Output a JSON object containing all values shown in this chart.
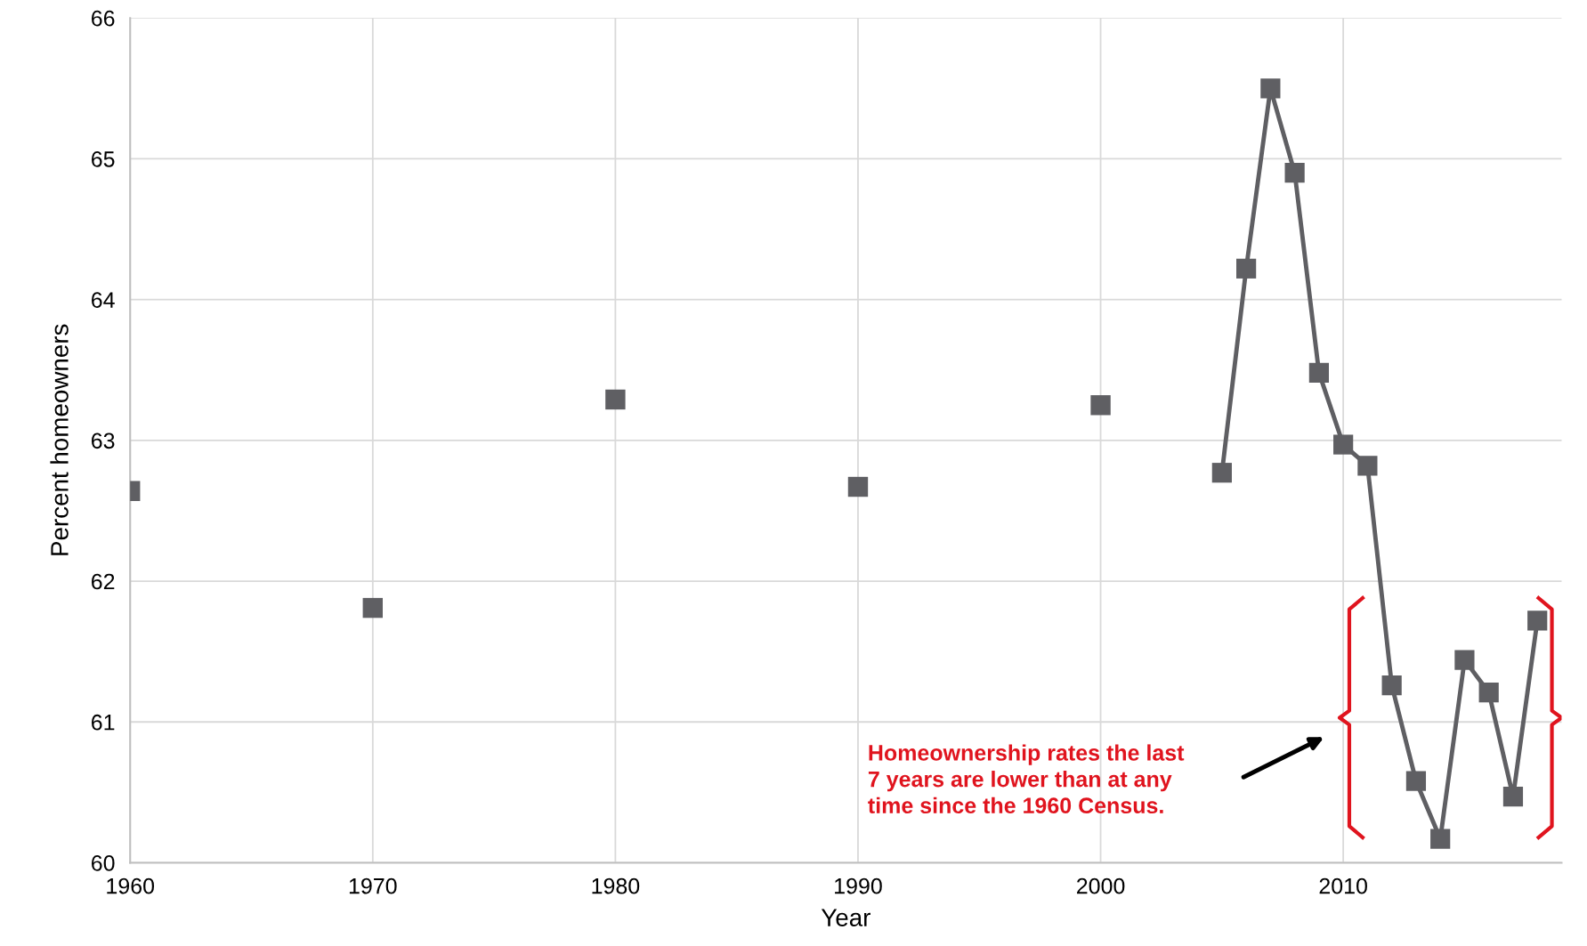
{
  "chart_data": {
    "type": "line",
    "xlabel": "Year",
    "ylabel": "Percent homeowners",
    "series": [
      {
        "type": "scatter",
        "color": "#5f5f63",
        "x": [
          1960,
          1970,
          1980,
          1990,
          2000
        ],
        "values": [
          62.64,
          61.81,
          63.29,
          62.67,
          63.25
        ]
      },
      {
        "color": "#5f5f63",
        "x": [
          2005,
          2006,
          2007,
          2008,
          2009,
          2010,
          2011,
          2012,
          2013,
          2014,
          2015,
          2016,
          2017,
          2018
        ],
        "values": [
          62.77,
          64.22,
          65.5,
          64.9,
          63.48,
          62.97,
          62.82,
          61.26,
          60.58,
          60.17,
          61.44,
          61.21,
          60.47,
          61.72
        ]
      }
    ],
    "marker": "square",
    "grid": true,
    "xlim": [
      1960,
      2019
    ],
    "xticks": [
      1960,
      1970,
      1980,
      1990,
      2000,
      2010
    ],
    "ylim": [
      60,
      66
    ],
    "yticks": [
      60,
      61,
      62,
      63,
      64,
      65,
      66
    ],
    "annotations": [
      "Homeownership rates the last\n7 years are lower than at any\ntime since the 1960 Census."
    ]
  }
}
